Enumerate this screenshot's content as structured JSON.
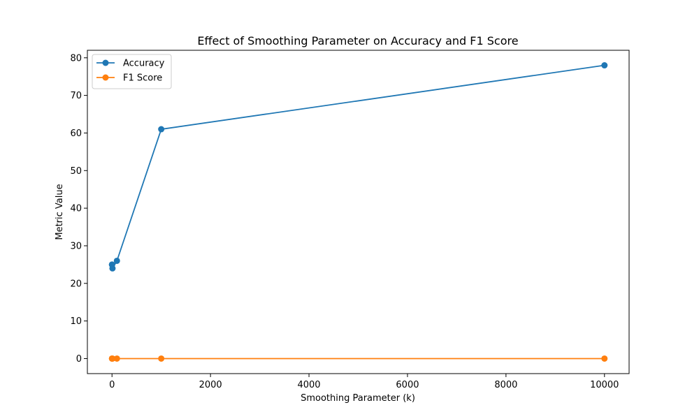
{
  "chart_data": {
    "type": "line",
    "title": "Effect of Smoothing Parameter on Accuracy and F1 Score",
    "xlabel": "Smoothing Parameter (k)",
    "ylabel": "Metric Value",
    "x": [
      0.1,
      1,
      10,
      100,
      1000,
      10000
    ],
    "series": [
      {
        "name": "Accuracy",
        "color": "#1f77b4",
        "values": [
          25,
          25,
          24,
          26,
          61,
          78
        ]
      },
      {
        "name": "F1 Score",
        "color": "#ff7f0e",
        "values": [
          0,
          0,
          0,
          0,
          0,
          0
        ]
      }
    ],
    "xlim": [
      -500,
      10500
    ],
    "ylim": [
      -4,
      82
    ],
    "xticks": [
      0,
      2000,
      4000,
      6000,
      8000,
      10000
    ],
    "yticks": [
      0,
      10,
      20,
      30,
      40,
      50,
      60,
      70,
      80
    ],
    "grid": false,
    "legend_position": "top-left",
    "marker": "circle"
  }
}
